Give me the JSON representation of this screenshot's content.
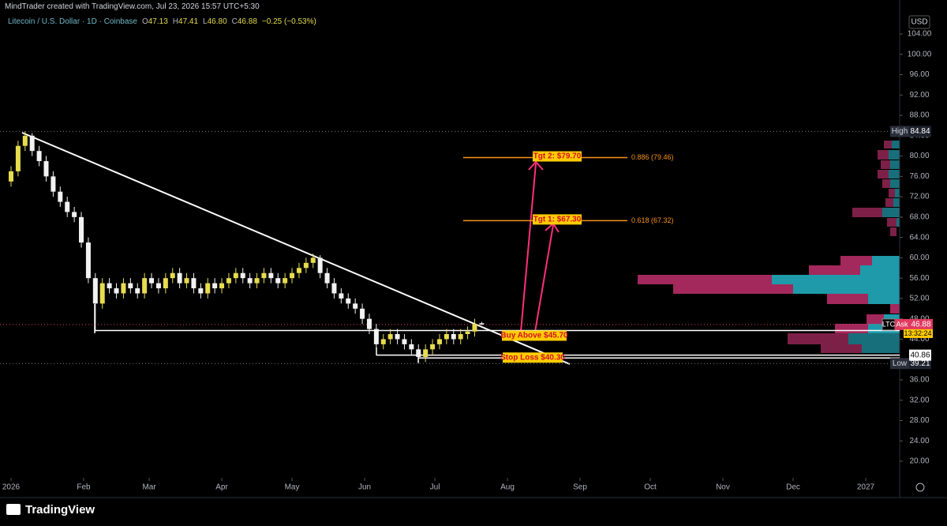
{
  "header": {
    "credit": "MindTrader created with TradingView.com, Jul 23, 2026 15:57 UTC+5:30",
    "symbol": "Litecoin / U.S. Dollar · 1D · Coinbase",
    "ohlc": [
      {
        "key": "O",
        "value": "47.13"
      },
      {
        "key": "H",
        "value": "47.41"
      },
      {
        "key": "L",
        "value": "46.80"
      },
      {
        "key": "C",
        "value": "46.88"
      },
      {
        "key": "",
        "value": "−0.25 (−0.53%)"
      }
    ]
  },
  "chart_data": {
    "type": "candlestick",
    "x": [
      0,
      3,
      6,
      9,
      12,
      15,
      18,
      21,
      24,
      27,
      30,
      33,
      36,
      39,
      42,
      45,
      48,
      51,
      54,
      57,
      60,
      63,
      66,
      69,
      72,
      75,
      78,
      81,
      84,
      87,
      90,
      93,
      96,
      99,
      102,
      105,
      108,
      111,
      114,
      117,
      120,
      123,
      126,
      129,
      132,
      135,
      138,
      141,
      144,
      147,
      150,
      153,
      156,
      159,
      162,
      165,
      168,
      171,
      174,
      177,
      180,
      183,
      186,
      189,
      192,
      195,
      198,
      201
    ],
    "open": [
      75,
      77,
      82,
      84,
      81,
      79,
      76,
      73,
      71,
      69,
      68,
      63,
      56,
      51,
      55,
      54,
      53,
      55,
      54,
      53,
      56,
      55,
      54,
      56,
      57,
      55,
      56,
      54,
      53,
      55,
      54,
      55,
      56,
      57,
      56,
      55,
      56,
      57,
      56,
      55,
      56,
      57,
      58,
      59,
      60,
      57,
      55,
      53,
      52,
      51,
      50,
      48,
      46,
      43,
      44,
      45,
      44,
      43,
      42,
      40.5,
      42,
      43,
      44,
      45,
      44,
      45,
      45.5,
      47.13
    ],
    "high": [
      78,
      83,
      84.84,
      84.5,
      82,
      80,
      77,
      74,
      72,
      70,
      69,
      64,
      57,
      56,
      56,
      55,
      56,
      56,
      55,
      57,
      57,
      56,
      57,
      58,
      58,
      57,
      57,
      55,
      56,
      56,
      56,
      57,
      58,
      58,
      57,
      57,
      58,
      58,
      57,
      57,
      58,
      59,
      60,
      60.8,
      60.5,
      58,
      56,
      54,
      53,
      52,
      51,
      49,
      47,
      45,
      46,
      46,
      45,
      44,
      43,
      43,
      44,
      45,
      46,
      46,
      46,
      46.5,
      48,
      47.41
    ],
    "low": [
      74,
      76,
      81,
      80,
      78,
      75,
      72,
      70,
      68,
      67,
      62,
      55,
      45.5,
      50,
      53,
      52,
      52,
      53,
      52,
      52,
      54,
      53,
      53,
      55,
      54,
      54,
      53,
      52,
      52,
      53,
      53,
      54,
      55,
      55,
      54,
      54,
      55,
      55,
      54,
      54,
      55,
      56,
      57,
      58,
      56,
      54,
      52,
      51,
      50,
      49,
      47,
      45,
      42,
      42,
      43,
      43,
      42,
      41,
      39.21,
      39.5,
      41,
      42,
      43,
      43,
      43,
      44,
      44.5,
      46.8
    ],
    "close": [
      77,
      82,
      84,
      81,
      79,
      76,
      73,
      71,
      69,
      68,
      63,
      56,
      51,
      55,
      54,
      53,
      55,
      54,
      53,
      56,
      55,
      54,
      56,
      57,
      55,
      56,
      54,
      53,
      55,
      54,
      55,
      56,
      57,
      56,
      55,
      56,
      57,
      56,
      55,
      56,
      57,
      58,
      59,
      60,
      57,
      55,
      53,
      52,
      51,
      50,
      48,
      46,
      43,
      44,
      45,
      44,
      43,
      42,
      40.5,
      42,
      43,
      44,
      45,
      44,
      45,
      45.5,
      47,
      46.88
    ],
    "up_color": "#e6dc4e",
    "down_color": "#f2f2f2",
    "xlim": [
      -4.72,
      379.5
    ],
    "xticks": [
      {
        "value": 0,
        "label": "2026"
      },
      {
        "value": 31,
        "label": "Feb"
      },
      {
        "value": 59,
        "label": "Mar"
      },
      {
        "value": 90,
        "label": "Apr"
      },
      {
        "value": 120,
        "label": "May"
      },
      {
        "value": 151,
        "label": "Jun"
      },
      {
        "value": 181,
        "label": "Jul"
      },
      {
        "value": 212,
        "label": "Aug"
      },
      {
        "value": 243,
        "label": "Sep"
      },
      {
        "value": 273,
        "label": "Oct"
      },
      {
        "value": 304,
        "label": "Nov"
      },
      {
        "value": 334,
        "label": "Dec"
      },
      {
        "value": 365,
        "label": "2027"
      }
    ],
    "ylim": [
      16.74,
      105.09
    ],
    "yticks": [
      {
        "value": 104,
        "label": "104.00"
      },
      {
        "value": 100,
        "label": "100.00"
      },
      {
        "value": 96,
        "label": "96.00"
      },
      {
        "value": 92,
        "label": "92.00"
      },
      {
        "value": 88,
        "label": "88.00"
      },
      {
        "value": 84,
        "label": "84.00"
      },
      {
        "value": 80,
        "label": "80.00"
      },
      {
        "value": 76,
        "label": "76.00"
      },
      {
        "value": 72,
        "label": "72.00"
      },
      {
        "value": 68,
        "label": "68.00"
      },
      {
        "value": 64,
        "label": "64.00"
      },
      {
        "value": 60,
        "label": "60.00"
      },
      {
        "value": 56,
        "label": "56.00"
      },
      {
        "value": 52,
        "label": "52.00"
      },
      {
        "value": 48,
        "label": "48.00"
      },
      {
        "value": 44,
        "label": "44.00"
      },
      {
        "value": 40,
        "label": "40.00"
      },
      {
        "value": 36,
        "label": "36.00"
      },
      {
        "value": 32,
        "label": "32.00"
      },
      {
        "value": 28,
        "label": "28.00"
      },
      {
        "value": 24,
        "label": "24.00"
      },
      {
        "value": 20,
        "label": "20.00"
      }
    ],
    "grid": false,
    "targets": [
      {
        "label": "Tgt 2: $79.70",
        "value": 79.7,
        "fib": "0.886 (79.46)"
      },
      {
        "label": "Tgt 1: $67.30",
        "value": 67.3,
        "fib": "0.618 (67.32)"
      }
    ],
    "buy": {
      "label": "Buy Above $45.70",
      "value": 45.7
    },
    "stop": {
      "label": "Stop Loss $40.30",
      "value": 40.3
    },
    "high_mark": {
      "label": "High",
      "value": 84.84
    },
    "low_mark": {
      "label": "Low",
      "value": 39.21
    },
    "level": 40.86,
    "last": {
      "symbol": "LTC",
      "tag": "Ask",
      "value": 46.88,
      "countdown": "13:32:24"
    },
    "currency": "USD"
  },
  "footer": {
    "brand": "TradingView"
  }
}
